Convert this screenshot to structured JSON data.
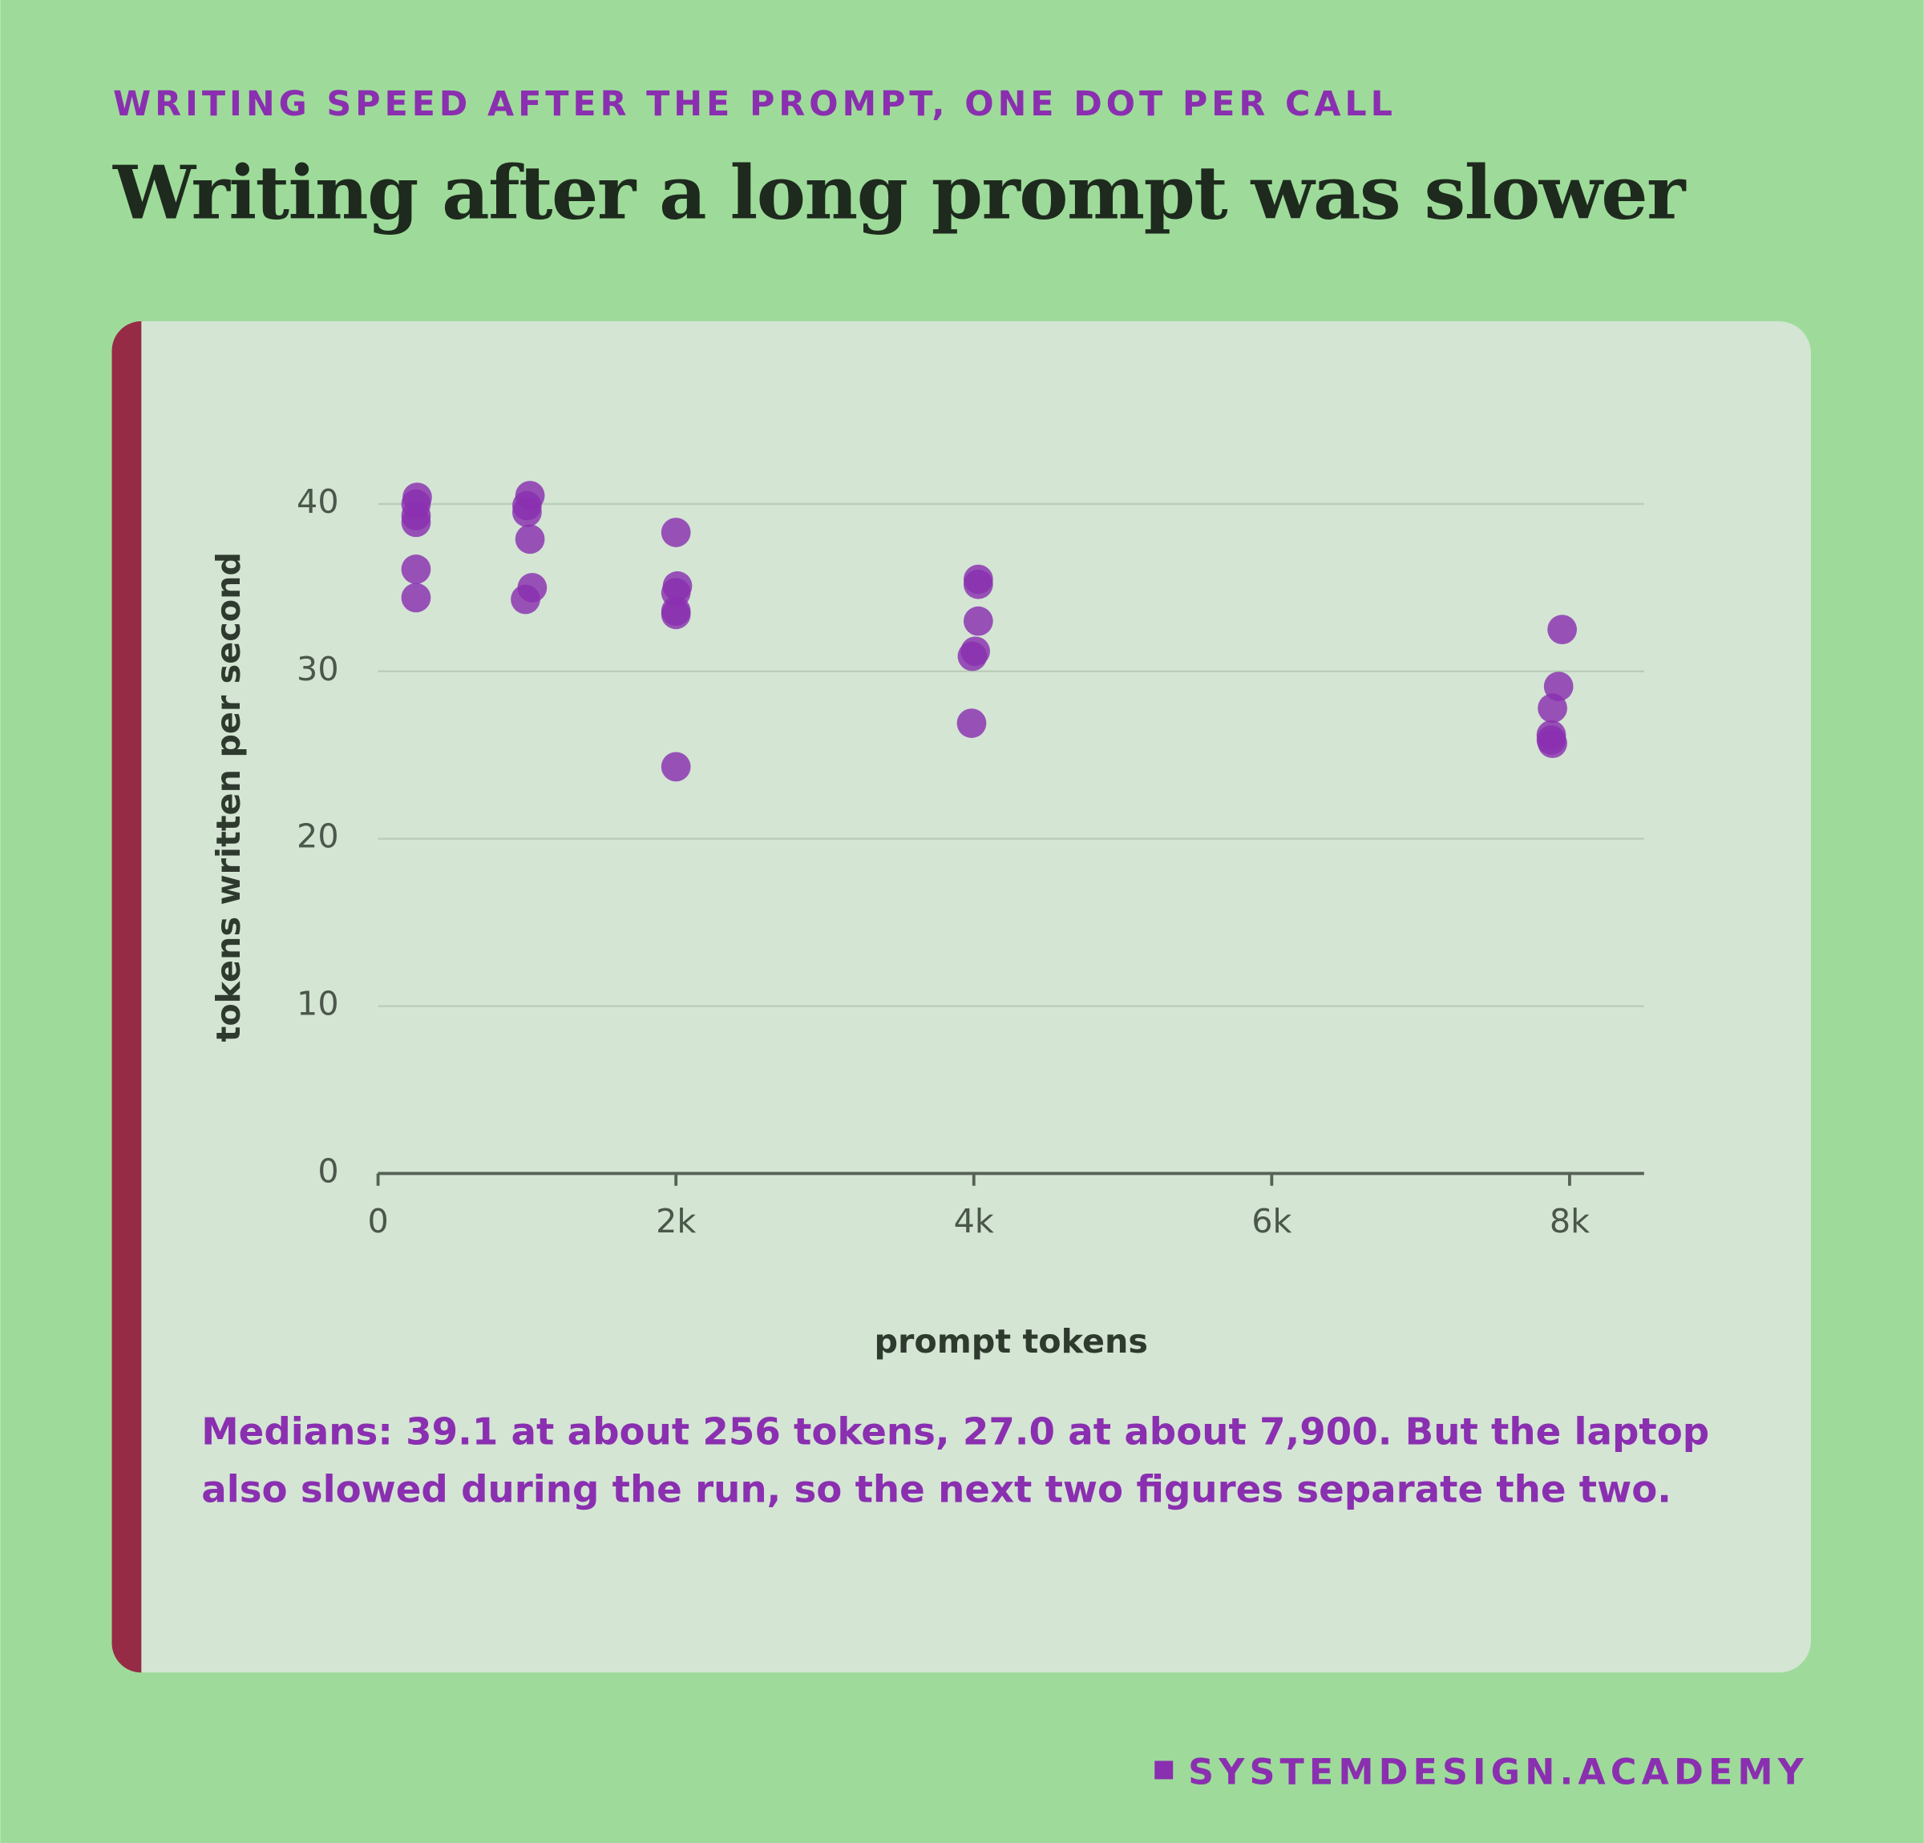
{
  "header": {
    "kicker": "WRITING SPEED AFTER THE PROMPT, ONE DOT PER CALL",
    "title": "Writing after a long prompt was slower"
  },
  "chart_data": {
    "type": "scatter",
    "x_label": "prompt tokens",
    "y_label": "tokens written per second",
    "x": [
      263,
      255,
      255,
      255,
      255,
      255,
      1020,
      1000,
      1000,
      1020,
      1035,
      990,
      2000,
      2010,
      2000,
      2000,
      2000,
      2000,
      4030,
      4030,
      4030,
      4010,
      3990,
      3985,
      7950,
      7926,
      7885,
      7877,
      7877,
      7885
    ],
    "values": [
      40.4,
      40.0,
      39.3,
      38.9,
      36.1,
      34.4,
      40.5,
      39.9,
      39.5,
      37.9,
      35.0,
      34.3,
      38.3,
      35.1,
      34.7,
      33.6,
      33.4,
      24.3,
      35.5,
      35.2,
      33.0,
      31.2,
      30.9,
      26.9,
      32.5,
      29.1,
      27.8,
      26.2,
      25.9,
      25.7
    ],
    "color": "#8a2fb0",
    "xlim": [
      0,
      8500
    ],
    "xticks": [
      0,
      {
        "value": 2000,
        "label": "2k"
      },
      {
        "value": 4000,
        "label": "4k"
      },
      {
        "value": 6000,
        "label": "6k"
      },
      {
        "value": 8000,
        "label": "8k"
      }
    ],
    "ylim": [
      0,
      40
    ],
    "yticks": [
      0,
      10,
      20,
      30,
      40
    ],
    "grid": true
  },
  "caption": "Medians: 39.1 at about 256 tokens, 27.0 at about 7,900. But the laptop also slowed during the run, so the next two figures separate the two.",
  "footer": "SYSTEMDESIGN.ACADEMY"
}
